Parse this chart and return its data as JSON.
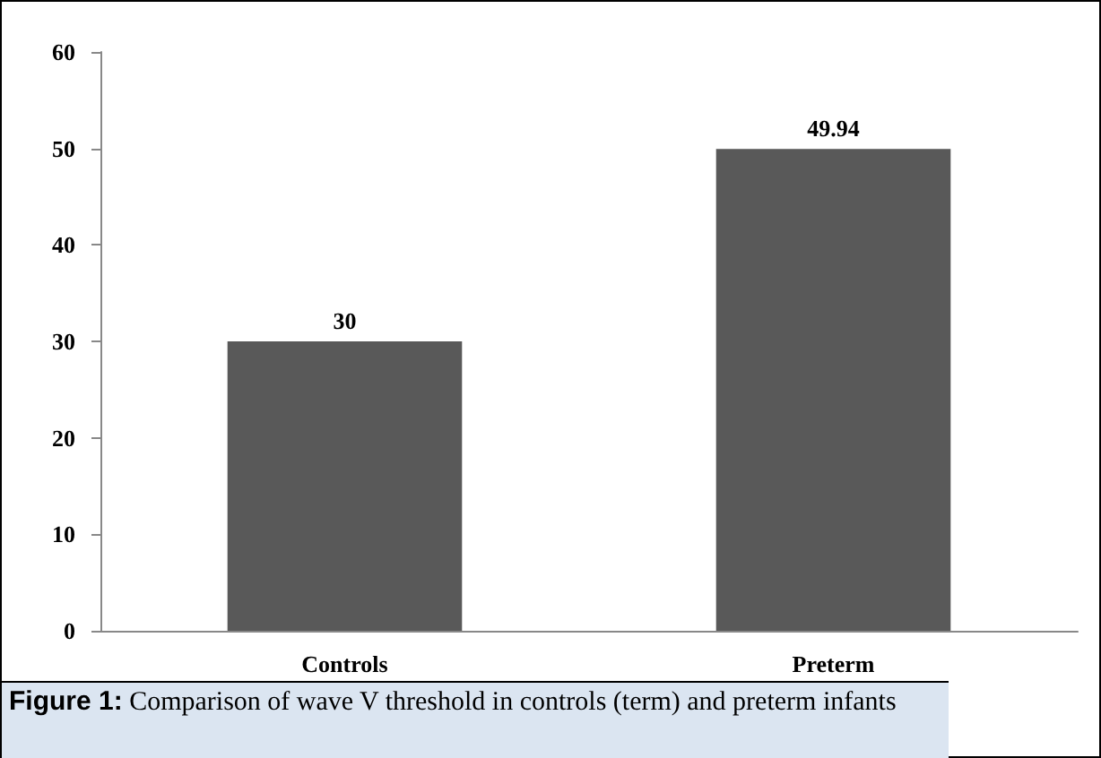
{
  "chart_data": {
    "type": "bar",
    "categories": [
      "Controls",
      "Preterm"
    ],
    "values": [
      30,
      49.94
    ],
    "color": "#595959",
    "ylim": [
      0,
      60
    ],
    "yticks": [
      0,
      10,
      20,
      30,
      40,
      50,
      60
    ],
    "data_labels": true,
    "grid": false,
    "annotations": [
      "Figure 1: Comparison of wave V threshold in controls (term) and preterm infants"
    ]
  }
}
